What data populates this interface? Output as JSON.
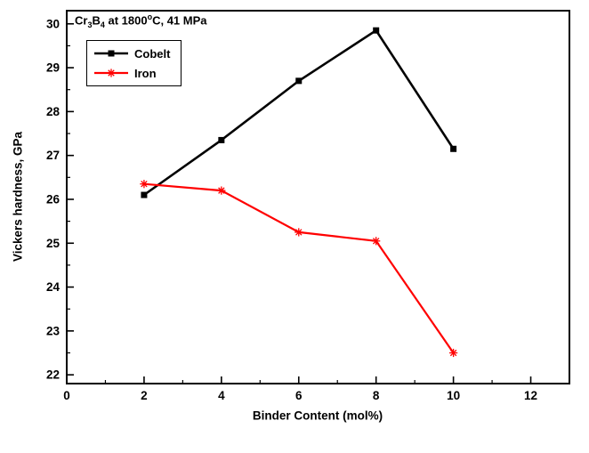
{
  "chart_data": {
    "type": "line",
    "title": "Cr3B4 at 1800°C, 41 MPa",
    "title_segments": [
      {
        "text": "Cr"
      },
      {
        "text": "3",
        "style": "sub"
      },
      {
        "text": "B"
      },
      {
        "text": "4",
        "style": "sub"
      },
      {
        "text": " at 1800"
      },
      {
        "text": "o",
        "style": "sup"
      },
      {
        "text": "C, 41 MPa"
      }
    ],
    "xlabel": "Binder Content (mol%)",
    "ylabel": "Vickers hardness, GPa",
    "xlim": [
      0,
      13
    ],
    "ylim": [
      21.8,
      30.3
    ],
    "x_ticks": [
      0,
      2,
      4,
      6,
      8,
      10,
      12
    ],
    "y_ticks": [
      22,
      23,
      24,
      25,
      26,
      27,
      28,
      29,
      30
    ],
    "grid": false,
    "legend_position": "top-left-inside",
    "frame_color": "#000000",
    "series": [
      {
        "name": "Cobelt",
        "color": "#000000",
        "marker": "square",
        "line_width": 2.6,
        "x": [
          2,
          4,
          6,
          8,
          10
        ],
        "values": [
          26.1,
          27.35,
          28.7,
          29.85,
          27.15
        ]
      },
      {
        "name": "Iron",
        "color": "#ff0000",
        "marker": "asterisk",
        "line_width": 2.2,
        "x": [
          2,
          4,
          6,
          8,
          10
        ],
        "values": [
          26.35,
          26.2,
          25.25,
          25.05,
          22.5
        ]
      }
    ]
  }
}
